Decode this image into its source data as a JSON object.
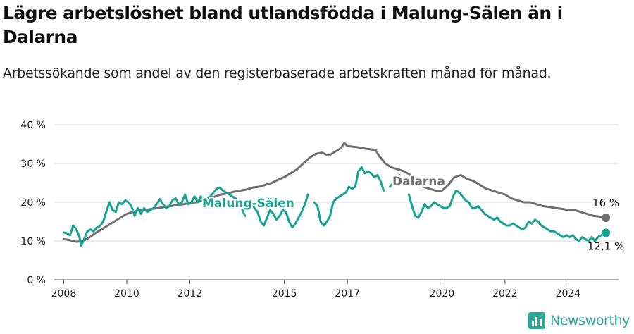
{
  "title": "Lägre arbetslöshet bland utlandsfödda i Malung-Sälen än i Dalarna",
  "subtitle": "Arbetssökande som andel av den registerbaserade arbetskraften månad för månad.",
  "brand": {
    "name": "Newsworthy",
    "color": "#2ba896",
    "icon": "bar-chart-logo-icon"
  },
  "colors": {
    "dalarna": "#6e6e73",
    "malung": "#16a394",
    "grid": "#d8d8d8",
    "axis": "#444444"
  },
  "chart_data": {
    "type": "line",
    "ylim": [
      0,
      40
    ],
    "xlim": [
      2007.7,
      2025.6
    ],
    "y_ticks": [
      0,
      10,
      20,
      30,
      40
    ],
    "y_tick_labels": [
      "0 %",
      "10 %",
      "20 %",
      "30 %",
      "40 %"
    ],
    "x_ticks": [
      2008,
      2010,
      2012,
      2015,
      2017,
      2020,
      2022,
      2024
    ],
    "x_tick_labels": [
      "2008",
      "2010",
      "2012",
      "2015",
      "2017",
      "2020",
      "2022",
      "2024"
    ],
    "grid": "horizontal",
    "series": [
      {
        "name": "Dalarna",
        "end_label": "16 %",
        "points": [
          [
            2008.0,
            10.5
          ],
          [
            2008.2,
            10.2
          ],
          [
            2008.4,
            9.8
          ],
          [
            2008.6,
            10.0
          ],
          [
            2008.8,
            10.8
          ],
          [
            2009.0,
            12.0
          ],
          [
            2009.2,
            13.0
          ],
          [
            2009.4,
            14.0
          ],
          [
            2009.6,
            15.0
          ],
          [
            2009.8,
            16.0
          ],
          [
            2010.0,
            17.0
          ],
          [
            2010.2,
            17.5
          ],
          [
            2010.4,
            18.0
          ],
          [
            2010.6,
            18.0
          ],
          [
            2010.8,
            18.3
          ],
          [
            2011.0,
            18.5
          ],
          [
            2011.2,
            18.8
          ],
          [
            2011.4,
            19.0
          ],
          [
            2011.6,
            19.3
          ],
          [
            2011.8,
            19.5
          ],
          [
            2012.0,
            19.8
          ],
          [
            2012.2,
            20.0
          ],
          [
            2012.4,
            20.5
          ],
          [
            2012.6,
            21.0
          ],
          [
            2012.8,
            21.5
          ],
          [
            2013.0,
            22.0
          ],
          [
            2013.2,
            22.3
          ],
          [
            2013.4,
            22.7
          ],
          [
            2013.6,
            23.0
          ],
          [
            2013.8,
            23.3
          ],
          [
            2014.0,
            23.8
          ],
          [
            2014.2,
            24.0
          ],
          [
            2014.4,
            24.5
          ],
          [
            2014.6,
            25.0
          ],
          [
            2014.8,
            25.8
          ],
          [
            2015.0,
            26.5
          ],
          [
            2015.2,
            27.5
          ],
          [
            2015.4,
            28.5
          ],
          [
            2015.6,
            30.0
          ],
          [
            2015.8,
            31.5
          ],
          [
            2016.0,
            32.5
          ],
          [
            2016.2,
            32.8
          ],
          [
            2016.4,
            32.0
          ],
          [
            2016.6,
            33.0
          ],
          [
            2016.8,
            34.0
          ],
          [
            2016.9,
            35.3
          ],
          [
            2017.0,
            34.5
          ],
          [
            2017.3,
            34.2
          ],
          [
            2017.6,
            33.8
          ],
          [
            2017.9,
            33.5
          ],
          [
            2018.0,
            32.0
          ],
          [
            2018.2,
            30.0
          ],
          [
            2018.4,
            29.0
          ],
          [
            2018.6,
            28.5
          ],
          [
            2018.8,
            28.0
          ],
          [
            2019.0,
            27.0
          ],
          [
            2019.2,
            25.0
          ],
          [
            2019.4,
            24.0
          ],
          [
            2019.6,
            23.5
          ],
          [
            2019.8,
            23.0
          ],
          [
            2020.0,
            23.0
          ],
          [
            2020.2,
            24.5
          ],
          [
            2020.4,
            26.5
          ],
          [
            2020.6,
            27.0
          ],
          [
            2020.8,
            26.0
          ],
          [
            2021.0,
            25.5
          ],
          [
            2021.2,
            24.5
          ],
          [
            2021.4,
            23.5
          ],
          [
            2021.6,
            23.0
          ],
          [
            2021.8,
            22.5
          ],
          [
            2022.0,
            22.0
          ],
          [
            2022.2,
            21.0
          ],
          [
            2022.4,
            20.5
          ],
          [
            2022.6,
            20.0
          ],
          [
            2022.8,
            20.0
          ],
          [
            2023.0,
            19.5
          ],
          [
            2023.2,
            19.0
          ],
          [
            2023.4,
            18.8
          ],
          [
            2023.6,
            18.5
          ],
          [
            2023.8,
            18.3
          ],
          [
            2024.0,
            18.0
          ],
          [
            2024.2,
            18.0
          ],
          [
            2024.4,
            17.5
          ],
          [
            2024.6,
            17.0
          ],
          [
            2024.8,
            16.5
          ],
          [
            2025.0,
            16.3
          ],
          [
            2025.2,
            16.0
          ]
        ]
      },
      {
        "name": "Malung-Sälen",
        "end_label": "12,1 %",
        "segments": [
          [
            [
              2008.0,
              12.2
            ],
            [
              2008.1,
              12.0
            ],
            [
              2008.2,
              11.5
            ],
            [
              2008.3,
              14.0
            ],
            [
              2008.4,
              13.0
            ],
            [
              2008.5,
              11.0
            ],
            [
              2008.55,
              8.8
            ],
            [
              2008.65,
              10.5
            ],
            [
              2008.75,
              12.5
            ],
            [
              2008.85,
              13.0
            ],
            [
              2008.95,
              12.5
            ],
            [
              2009.05,
              13.5
            ],
            [
              2009.15,
              13.8
            ],
            [
              2009.25,
              15.0
            ],
            [
              2009.35,
              17.5
            ],
            [
              2009.45,
              20.0
            ],
            [
              2009.55,
              18.0
            ],
            [
              2009.65,
              17.5
            ],
            [
              2009.75,
              20.0
            ],
            [
              2009.85,
              19.5
            ],
            [
              2009.95,
              20.5
            ],
            [
              2010.05,
              20.0
            ],
            [
              2010.15,
              19.0
            ],
            [
              2010.25,
              16.5
            ],
            [
              2010.35,
              18.5
            ],
            [
              2010.45,
              17.0
            ],
            [
              2010.55,
              18.5
            ],
            [
              2010.65,
              17.5
            ],
            [
              2010.75,
              18.0
            ],
            [
              2010.85,
              18.5
            ],
            [
              2010.95,
              19.5
            ],
            [
              2011.05,
              20.8
            ],
            [
              2011.15,
              19.5
            ],
            [
              2011.25,
              18.5
            ],
            [
              2011.35,
              19.0
            ],
            [
              2011.45,
              20.5
            ],
            [
              2011.55,
              21.0
            ],
            [
              2011.65,
              19.5
            ],
            [
              2011.75,
              20.0
            ],
            [
              2011.85,
              22.0
            ],
            [
              2011.95,
              19.5
            ],
            [
              2012.05,
              20.0
            ],
            [
              2012.15,
              21.5
            ],
            [
              2012.25,
              20.0
            ],
            [
              2012.35,
              21.5
            ],
            [
              2012.45,
              20.5
            ],
            [
              2012.55,
              21.0
            ],
            [
              2012.65,
              21.5
            ],
            [
              2012.75,
              22.5
            ],
            [
              2012.85,
              23.5
            ],
            [
              2012.95,
              23.8
            ],
            [
              2013.05,
              23.0
            ],
            [
              2013.15,
              22.5
            ],
            [
              2013.25,
              22.0
            ],
            [
              2013.35,
              21.5
            ],
            [
              2013.45,
              21.0
            ],
            [
              2013.55,
              20.0
            ],
            [
              2013.65,
              18.5
            ],
            [
              2013.75,
              16.5
            ]
          ],
          [
            [
              2013.95,
              20.0
            ],
            [
              2014.05,
              18.5
            ],
            [
              2014.15,
              17.5
            ],
            [
              2014.25,
              15.0
            ],
            [
              2014.35,
              14.0
            ],
            [
              2014.45,
              16.0
            ],
            [
              2014.55,
              18.0
            ],
            [
              2014.65,
              17.0
            ],
            [
              2014.75,
              15.5
            ],
            [
              2014.85,
              16.5
            ],
            [
              2014.95,
              18.0
            ],
            [
              2015.05,
              17.5
            ],
            [
              2015.15,
              15.0
            ],
            [
              2015.25,
              13.5
            ],
            [
              2015.35,
              14.5
            ],
            [
              2015.45,
              16.0
            ],
            [
              2015.55,
              17.5
            ],
            [
              2015.65,
              19.5
            ],
            [
              2015.75,
              22.0
            ]
          ],
          [
            [
              2015.95,
              20.0
            ],
            [
              2016.05,
              19.0
            ],
            [
              2016.15,
              15.0
            ],
            [
              2016.25,
              14.0
            ],
            [
              2016.35,
              15.0
            ],
            [
              2016.45,
              16.5
            ],
            [
              2016.55,
              20.0
            ],
            [
              2016.65,
              21.0
            ],
            [
              2016.75,
              21.5
            ],
            [
              2016.85,
              22.0
            ],
            [
              2016.95,
              22.5
            ],
            [
              2017.05,
              24.0
            ],
            [
              2017.15,
              23.5
            ],
            [
              2017.25,
              24.0
            ],
            [
              2017.35,
              28.0
            ],
            [
              2017.45,
              29.0
            ],
            [
              2017.55,
              27.5
            ],
            [
              2017.65,
              28.0
            ],
            [
              2017.75,
              27.5
            ],
            [
              2017.85,
              26.5
            ],
            [
              2017.95,
              27.0
            ],
            [
              2018.05,
              25.5
            ],
            [
              2018.15,
              23.0
            ]
          ],
          [
            [
              2018.35,
              24.0
            ],
            [
              2018.45,
              25.0
            ],
            [
              2018.55,
              26.0
            ],
            [
              2018.65,
              27.0
            ]
          ],
          [
            [
              2018.95,
              22.0
            ],
            [
              2019.05,
              19.0
            ],
            [
              2019.15,
              16.5
            ],
            [
              2019.25,
              16.0
            ],
            [
              2019.35,
              17.5
            ],
            [
              2019.45,
              19.5
            ],
            [
              2019.55,
              18.5
            ],
            [
              2019.65,
              19.0
            ],
            [
              2019.75,
              20.0
            ],
            [
              2019.85,
              19.5
            ],
            [
              2019.95,
              19.0
            ],
            [
              2020.05,
              18.5
            ],
            [
              2020.15,
              18.5
            ],
            [
              2020.25,
              19.0
            ],
            [
              2020.35,
              21.5
            ],
            [
              2020.45,
              23.0
            ],
            [
              2020.55,
              22.5
            ],
            [
              2020.65,
              21.5
            ],
            [
              2020.75,
              20.5
            ],
            [
              2020.85,
              20.0
            ],
            [
              2020.95,
              18.5
            ],
            [
              2021.05,
              18.5
            ],
            [
              2021.15,
              19.0
            ],
            [
              2021.25,
              18.0
            ],
            [
              2021.35,
              17.0
            ],
            [
              2021.45,
              16.5
            ],
            [
              2021.55,
              16.0
            ],
            [
              2021.65,
              15.5
            ],
            [
              2021.75,
              16.0
            ],
            [
              2021.85,
              15.0
            ],
            [
              2021.95,
              14.5
            ],
            [
              2022.05,
              14.0
            ],
            [
              2022.15,
              14.0
            ],
            [
              2022.25,
              14.5
            ],
            [
              2022.35,
              14.0
            ],
            [
              2022.45,
              13.5
            ],
            [
              2022.55,
              13.0
            ],
            [
              2022.65,
              13.5
            ],
            [
              2022.75,
              15.0
            ],
            [
              2022.85,
              14.5
            ],
            [
              2022.95,
              15.5
            ],
            [
              2023.05,
              15.0
            ],
            [
              2023.15,
              14.0
            ],
            [
              2023.25,
              13.5
            ],
            [
              2023.35,
              13.0
            ],
            [
              2023.45,
              12.5
            ],
            [
              2023.55,
              12.5
            ],
            [
              2023.65,
              12.0
            ],
            [
              2023.75,
              11.5
            ],
            [
              2023.85,
              11.0
            ],
            [
              2023.95,
              11.5
            ],
            [
              2024.05,
              11.0
            ],
            [
              2024.15,
              11.5
            ],
            [
              2024.25,
              10.5
            ],
            [
              2024.35,
              10.0
            ],
            [
              2024.45,
              11.0
            ],
            [
              2024.55,
              10.5
            ],
            [
              2024.65,
              10.0
            ],
            [
              2024.75,
              11.0
            ],
            [
              2024.85,
              10.0
            ],
            [
              2024.95,
              11.0
            ],
            [
              2025.05,
              11.5
            ],
            [
              2025.2,
              12.1
            ]
          ]
        ]
      }
    ]
  }
}
